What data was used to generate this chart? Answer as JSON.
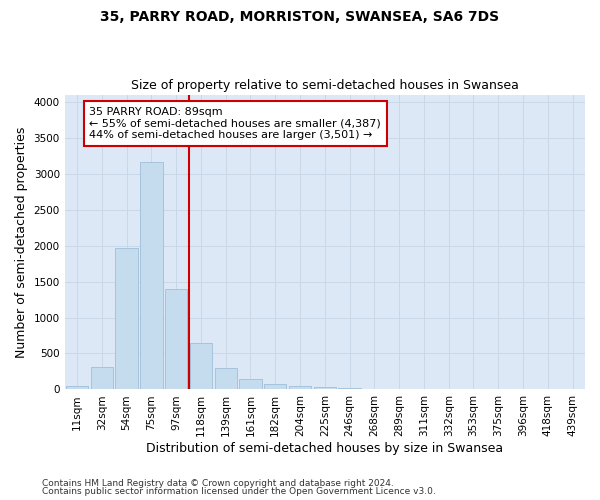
{
  "title": "35, PARRY ROAD, MORRISTON, SWANSEA, SA6 7DS",
  "subtitle": "Size of property relative to semi-detached houses in Swansea",
  "xlabel": "Distribution of semi-detached houses by size in Swansea",
  "ylabel": "Number of semi-detached properties",
  "categories": [
    "11sqm",
    "32sqm",
    "54sqm",
    "75sqm",
    "97sqm",
    "118sqm",
    "139sqm",
    "161sqm",
    "182sqm",
    "204sqm",
    "225sqm",
    "246sqm",
    "268sqm",
    "289sqm",
    "311sqm",
    "332sqm",
    "353sqm",
    "375sqm",
    "396sqm",
    "418sqm",
    "439sqm"
  ],
  "values": [
    50,
    310,
    1970,
    3160,
    1400,
    650,
    300,
    140,
    80,
    50,
    35,
    20,
    8,
    0,
    0,
    0,
    0,
    0,
    0,
    0,
    0
  ],
  "bar_color": "#c5dcef",
  "bar_edge_color": "#a0bfd8",
  "vline_index": 4.5,
  "property_line_label": "35 PARRY ROAD: 89sqm",
  "annotation_smaller": "← 55% of semi-detached houses are smaller (4,387)",
  "annotation_larger": "44% of semi-detached houses are larger (3,501) →",
  "vline_color": "#cc0000",
  "ylim": [
    0,
    4100
  ],
  "yticks": [
    0,
    500,
    1000,
    1500,
    2000,
    2500,
    3000,
    3500,
    4000
  ],
  "grid_color": "#c8d8e8",
  "background_color": "#dce8f5",
  "footer1": "Contains HM Land Registry data © Crown copyright and database right 2024.",
  "footer2": "Contains public sector information licensed under the Open Government Licence v3.0.",
  "title_fontsize": 10,
  "subtitle_fontsize": 9,
  "axis_label_fontsize": 9,
  "tick_fontsize": 7.5,
  "footer_fontsize": 6.5
}
